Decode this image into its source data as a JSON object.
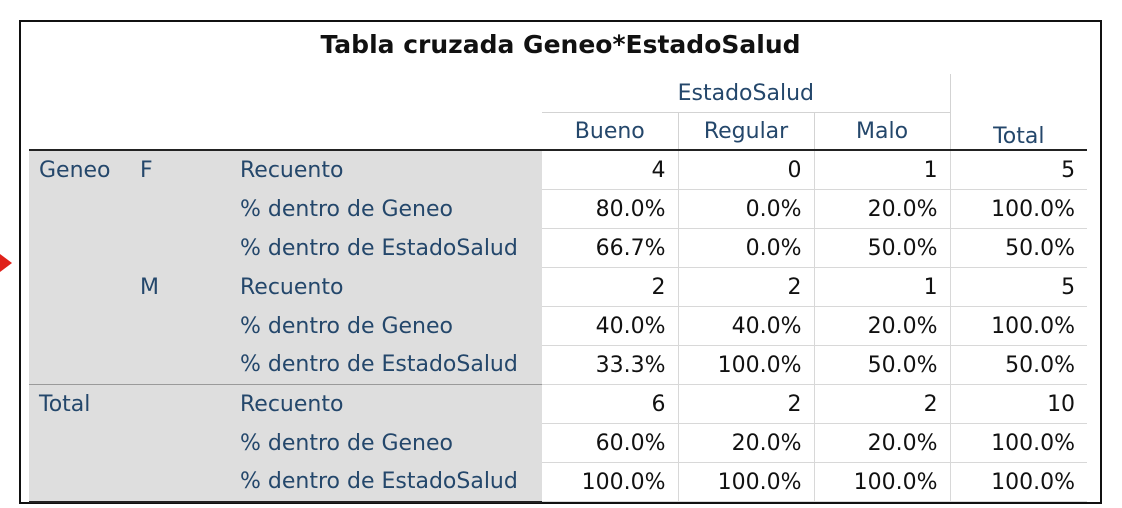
{
  "title": "Tabla cruzada Geneo*EstadoSalud",
  "header": {
    "group": "EstadoSalud",
    "columns": [
      "Bueno",
      "Regular",
      "Malo"
    ],
    "total": "Total"
  },
  "rows": [
    {
      "g": "Geneo",
      "s": "F",
      "stat": "Recuento",
      "v": [
        "4",
        "0",
        "1",
        "5"
      ]
    },
    {
      "g": "",
      "s": "",
      "stat": "% dentro de Geneo",
      "v": [
        "80.0%",
        "0.0%",
        "20.0%",
        "100.0%"
      ]
    },
    {
      "g": "",
      "s": "",
      "stat": "% dentro de EstadoSalud",
      "v": [
        "66.7%",
        "0.0%",
        "50.0%",
        "50.0%"
      ]
    },
    {
      "g": "",
      "s": "M",
      "stat": "Recuento",
      "v": [
        "2",
        "2",
        "1",
        "5"
      ]
    },
    {
      "g": "",
      "s": "",
      "stat": "% dentro de Geneo",
      "v": [
        "40.0%",
        "40.0%",
        "20.0%",
        "100.0%"
      ]
    },
    {
      "g": "",
      "s": "",
      "stat": "% dentro de EstadoSalud",
      "v": [
        "33.3%",
        "100.0%",
        "50.0%",
        "50.0%"
      ]
    },
    {
      "g": "Total",
      "s": "",
      "stat": "Recuento",
      "v": [
        "6",
        "2",
        "2",
        "10"
      ]
    },
    {
      "g": "",
      "s": "",
      "stat": "% dentro de Geneo",
      "v": [
        "60.0%",
        "20.0%",
        "20.0%",
        "100.0%"
      ]
    },
    {
      "g": "",
      "s": "",
      "stat": "% dentro de EstadoSalud",
      "v": [
        "100.0%",
        "100.0%",
        "100.0%",
        "100.0%"
      ]
    }
  ],
  "colors": {
    "label_text": "#24476b",
    "label_bg": "#dedede",
    "marker": "#e0211a"
  }
}
